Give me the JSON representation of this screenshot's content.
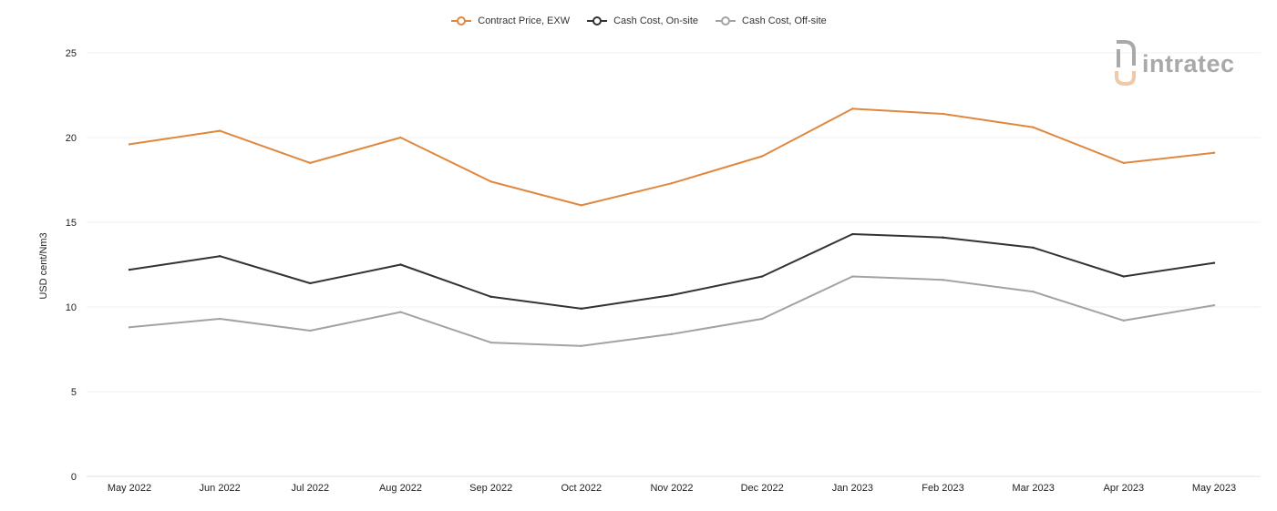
{
  "chart_data": {
    "type": "line",
    "categories": [
      "May 2022",
      "Jun 2022",
      "Jul 2022",
      "Aug 2022",
      "Sep 2022",
      "Oct 2022",
      "Nov 2022",
      "Dec 2022",
      "Jan 2023",
      "Feb 2023",
      "Mar 2023",
      "Apr 2023",
      "May 2023"
    ],
    "series": [
      {
        "name": "Contract Price, EXW",
        "color": "#e0883f",
        "values": [
          19.6,
          20.4,
          18.5,
          20.0,
          17.4,
          16.0,
          17.3,
          18.9,
          21.7,
          21.4,
          20.6,
          18.5,
          19.1
        ]
      },
      {
        "name": "Cash Cost, On-site",
        "color": "#333333",
        "values": [
          12.2,
          13.0,
          11.4,
          12.5,
          10.6,
          9.9,
          10.7,
          11.8,
          14.3,
          14.1,
          13.5,
          11.8,
          12.6
        ]
      },
      {
        "name": "Cash Cost, Off-site",
        "color": "#a3a3a3",
        "values": [
          8.8,
          9.3,
          8.6,
          9.7,
          7.9,
          7.7,
          8.4,
          9.3,
          11.8,
          11.6,
          10.9,
          9.2,
          10.1
        ]
      }
    ],
    "ylabel": "USD cent/Nm3",
    "xlabel": "",
    "ylim": [
      0,
      25
    ],
    "yticks": [
      0,
      5,
      10,
      15,
      20,
      25
    ],
    "grid": true,
    "legend": "top-center"
  },
  "logo": {
    "text": "intratec"
  }
}
